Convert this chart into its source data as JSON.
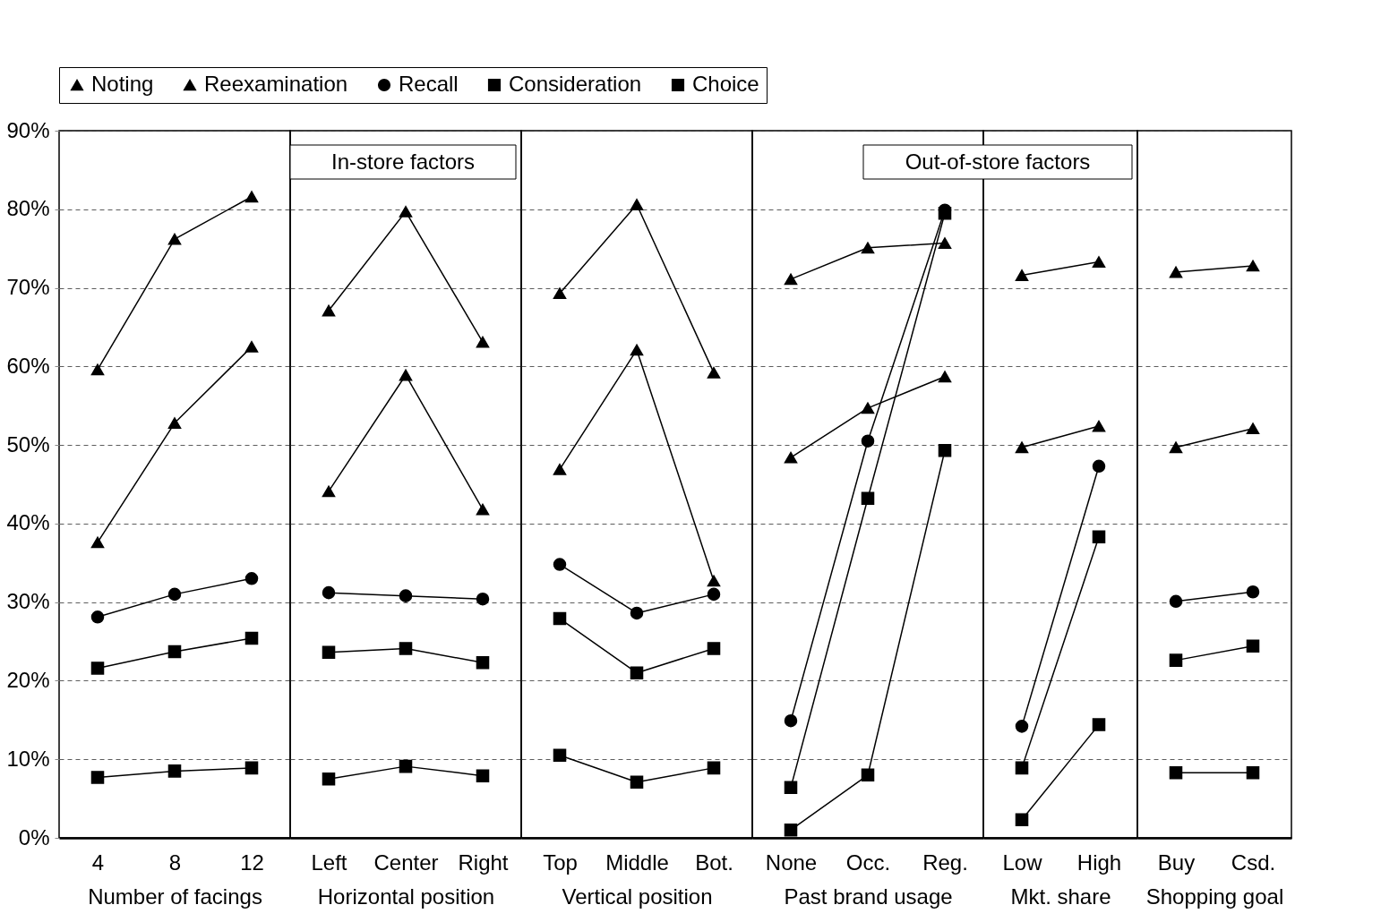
{
  "chart_data": [
    {
      "type": "line",
      "categories": [
        "4",
        "8",
        "12"
      ],
      "xlabel": "Number of facings",
      "ylim": [
        0,
        90
      ],
      "yticks": [
        {
          "value": 0,
          "label": "0%"
        },
        {
          "value": 10,
          "label": "10%"
        },
        {
          "value": 20,
          "label": "20%"
        },
        {
          "value": 30,
          "label": "30%"
        },
        {
          "value": 40,
          "label": "40%"
        },
        {
          "value": 50,
          "label": "50%"
        },
        {
          "value": 60,
          "label": "60%"
        },
        {
          "value": 70,
          "label": "70%"
        },
        {
          "value": 80,
          "label": "80%"
        },
        {
          "value": 90,
          "label": "90%"
        }
      ],
      "grid": "y",
      "legend": "top",
      "series": [
        {
          "name": "Noting",
          "color": "#000000",
          "marker": "triangle",
          "values": [
            59.6,
            76.2,
            81.6
          ]
        },
        {
          "name": "Reexamination",
          "color": "#000000",
          "marker": "triangle",
          "values": [
            37.6,
            52.8,
            62.5
          ]
        },
        {
          "name": "Recall",
          "color": "#000000",
          "marker": "circle",
          "values": [
            28.1,
            31.0,
            33.0
          ]
        },
        {
          "name": "Consideration",
          "color": "#000000",
          "marker": "square",
          "values": [
            21.6,
            23.7,
            25.4
          ]
        },
        {
          "name": "Choice",
          "color": "#000000",
          "marker": "square",
          "values": [
            7.7,
            8.5,
            8.9
          ]
        }
      ]
    },
    {
      "type": "line",
      "categories": [
        "Left",
        "Center",
        "Right"
      ],
      "xlabel": "Horizontal position",
      "ylim": [
        0,
        90
      ],
      "yticks": [
        0,
        10,
        20,
        30,
        40,
        50,
        60,
        70,
        80,
        90
      ],
      "grid": "y",
      "tick_labels": "x",
      "annotations": [
        "In-store factors"
      ],
      "series": [
        {
          "name": "Noting",
          "color": "#000000",
          "marker": "triangle",
          "values": [
            67.1,
            79.7,
            63.1
          ]
        },
        {
          "name": "Reexamination",
          "color": "#000000",
          "marker": "triangle",
          "values": [
            44.1,
            58.9,
            41.8
          ]
        },
        {
          "name": "Recall",
          "color": "#000000",
          "marker": "circle",
          "values": [
            31.2,
            30.8,
            30.4
          ]
        },
        {
          "name": "Consideration",
          "color": "#000000",
          "marker": "square",
          "values": [
            23.6,
            24.1,
            22.3
          ]
        },
        {
          "name": "Choice",
          "color": "#000000",
          "marker": "square",
          "values": [
            7.5,
            9.1,
            7.9
          ]
        }
      ]
    },
    {
      "type": "line",
      "categories": [
        "Top",
        "Middle",
        "Bot."
      ],
      "xlabel": "Vertical position",
      "ylim": [
        0,
        90
      ],
      "yticks": [
        0,
        10,
        20,
        30,
        40,
        50,
        60,
        70,
        80,
        90
      ],
      "grid": "y",
      "tick_labels": "x",
      "series": [
        {
          "name": "Noting",
          "color": "#000000",
          "marker": "triangle",
          "values": [
            69.3,
            80.6,
            59.2
          ]
        },
        {
          "name": "Reexamination",
          "color": "#000000",
          "marker": "triangle",
          "values": [
            46.9,
            62.1,
            32.7
          ]
        },
        {
          "name": "Recall",
          "color": "#000000",
          "marker": "circle",
          "values": [
            34.8,
            28.6,
            31.0
          ]
        },
        {
          "name": "Consideration",
          "color": "#000000",
          "marker": "square",
          "values": [
            27.9,
            21.0,
            24.1
          ]
        },
        {
          "name": "Choice",
          "color": "#000000",
          "marker": "square",
          "values": [
            10.5,
            7.1,
            8.9
          ]
        }
      ]
    },
    {
      "type": "line",
      "categories": [
        "None",
        "Occ.",
        "Reg."
      ],
      "xlabel": "Past brand usage",
      "ylim": [
        0,
        90
      ],
      "yticks": [
        0,
        10,
        20,
        30,
        40,
        50,
        60,
        70,
        80,
        90
      ],
      "grid": "y",
      "tick_labels": "x",
      "series": [
        {
          "name": "Noting",
          "color": "#000000",
          "marker": "triangle",
          "values": [
            71.1,
            75.1,
            75.7
          ]
        },
        {
          "name": "Reexamination",
          "color": "#000000",
          "marker": "triangle",
          "values": [
            48.4,
            54.7,
            58.7
          ]
        },
        {
          "name": "Recall",
          "color": "#000000",
          "marker": "circle",
          "values": [
            14.9,
            50.5,
            79.9
          ]
        },
        {
          "name": "Consideration",
          "color": "#000000",
          "marker": "square",
          "values": [
            6.4,
            43.2,
            79.5
          ]
        },
        {
          "name": "Choice",
          "color": "#000000",
          "marker": "square",
          "values": [
            1.0,
            8.0,
            49.3
          ]
        }
      ]
    },
    {
      "type": "line",
      "categories": [
        "Low",
        "High"
      ],
      "xlabel": "Mkt. share",
      "ylim": [
        0,
        90
      ],
      "yticks": [
        0,
        10,
        20,
        30,
        40,
        50,
        60,
        70,
        80,
        90
      ],
      "grid": "y",
      "tick_labels": "x",
      "annotations": [
        "Out-of-store factors"
      ],
      "series": [
        {
          "name": "Noting",
          "color": "#000000",
          "marker": "triangle",
          "values": [
            71.6,
            73.3
          ]
        },
        {
          "name": "Reexamination",
          "color": "#000000",
          "marker": "triangle",
          "values": [
            49.7,
            52.4
          ]
        },
        {
          "name": "Recall",
          "color": "#000000",
          "marker": "circle",
          "values": [
            14.2,
            47.3
          ]
        },
        {
          "name": "Consideration",
          "color": "#000000",
          "marker": "square",
          "values": [
            8.9,
            38.3
          ]
        },
        {
          "name": "Choice",
          "color": "#000000",
          "marker": "square",
          "values": [
            2.3,
            14.4
          ]
        }
      ]
    },
    {
      "type": "line",
      "categories": [
        "Buy",
        "Csd."
      ],
      "xlabel": "Shopping goal",
      "ylim": [
        0,
        90
      ],
      "yticks": [
        0,
        10,
        20,
        30,
        40,
        50,
        60,
        70,
        80,
        90
      ],
      "grid": "y",
      "tick_labels": "x",
      "series": [
        {
          "name": "Noting",
          "color": "#000000",
          "marker": "triangle",
          "values": [
            72.0,
            72.8
          ]
        },
        {
          "name": "Reexamination",
          "color": "#000000",
          "marker": "triangle",
          "values": [
            49.7,
            52.1
          ]
        },
        {
          "name": "Recall",
          "color": "#000000",
          "marker": "circle",
          "values": [
            30.1,
            31.3
          ]
        },
        {
          "name": "Consideration",
          "color": "#000000",
          "marker": "square",
          "values": [
            22.6,
            24.4
          ]
        },
        {
          "name": "Choice",
          "color": "#000000",
          "marker": "square",
          "values": [
            8.3,
            8.3
          ]
        }
      ]
    }
  ]
}
